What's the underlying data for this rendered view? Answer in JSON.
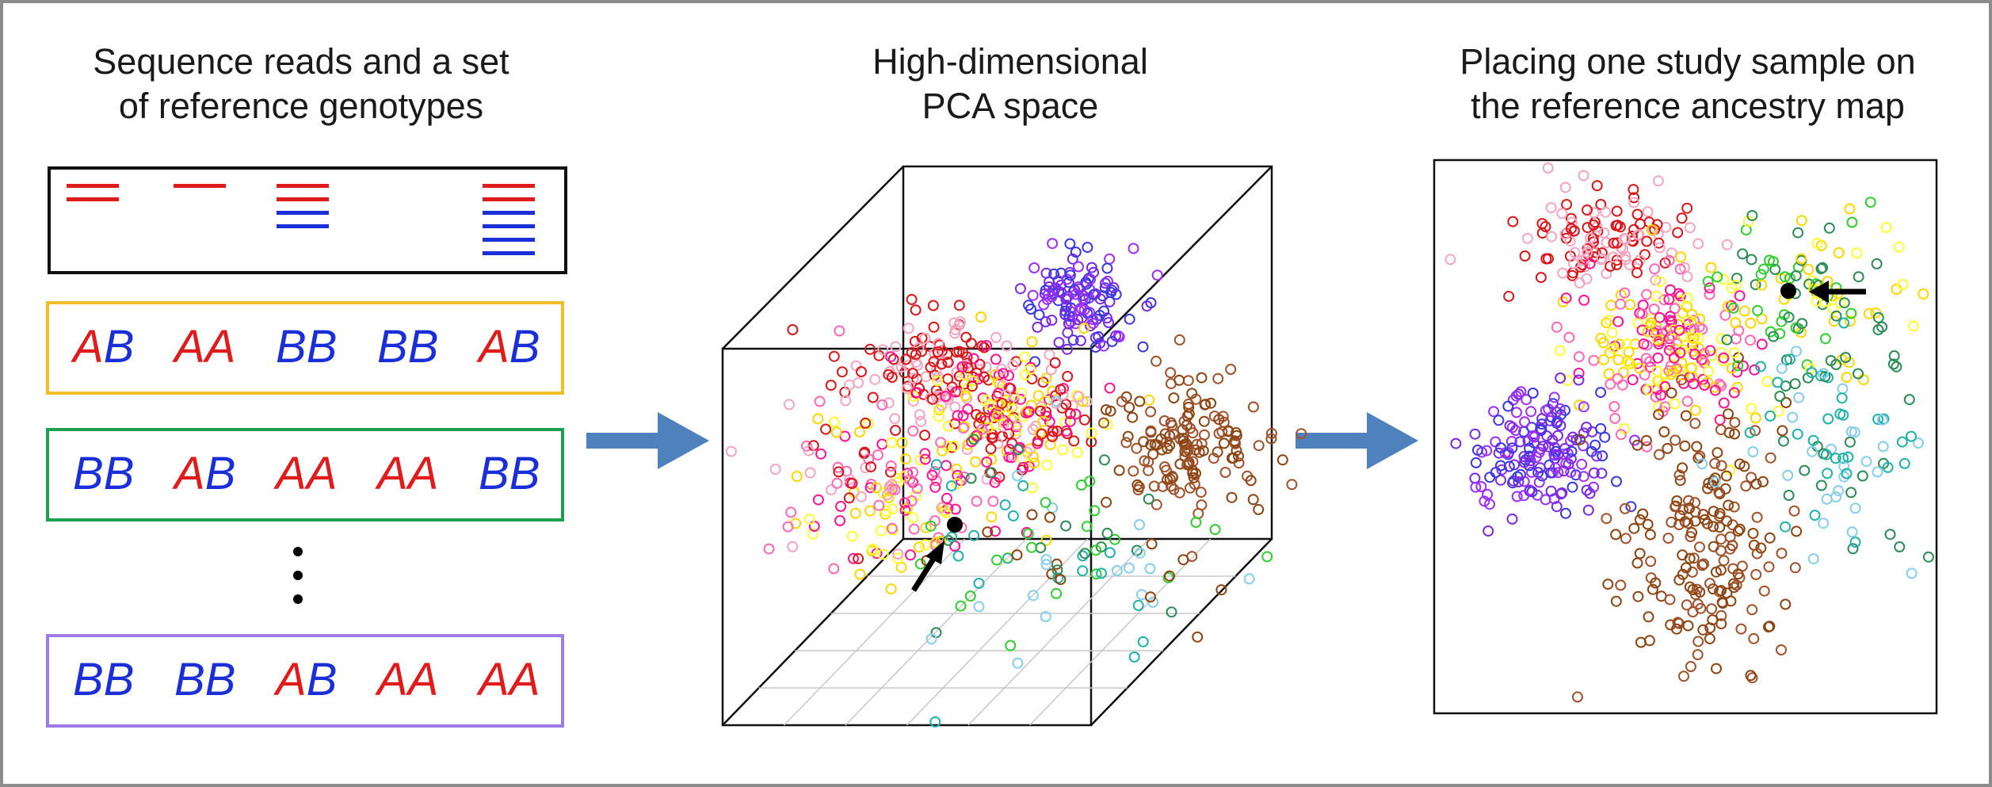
{
  "panels": {
    "left_title": [
      "Sequence reads and a set",
      "of reference genotypes"
    ],
    "middle_title": [
      "High-dimensional",
      "PCA space"
    ],
    "right_title": [
      "Placing one study sample on",
      "the reference ancestry map"
    ]
  },
  "genotype_rows": [
    {
      "box_color": "#f2be28",
      "cells": [
        {
          "a": "A",
          "b": "B",
          "ca": "#e01b1b",
          "cb": "#1a2fd8"
        },
        {
          "a": "A",
          "b": "A",
          "ca": "#e01b1b",
          "cb": "#e01b1b"
        },
        {
          "a": "B",
          "b": "B",
          "ca": "#1a2fd8",
          "cb": "#1a2fd8"
        },
        {
          "a": "B",
          "b": "B",
          "ca": "#1a2fd8",
          "cb": "#1a2fd8"
        },
        {
          "a": "A",
          "b": "B",
          "ca": "#e01b1b",
          "cb": "#1a2fd8"
        }
      ]
    },
    {
      "box_color": "#1fa050",
      "cells": [
        {
          "a": "B",
          "b": "B",
          "ca": "#1a2fd8",
          "cb": "#1a2fd8"
        },
        {
          "a": "A",
          "b": "B",
          "ca": "#e01b1b",
          "cb": "#1a2fd8"
        },
        {
          "a": "A",
          "b": "A",
          "ca": "#e01b1b",
          "cb": "#e01b1b"
        },
        {
          "a": "A",
          "b": "A",
          "ca": "#e01b1b",
          "cb": "#e01b1b"
        },
        {
          "a": "B",
          "b": "B",
          "ca": "#1a2fd8",
          "cb": "#1a2fd8"
        }
      ]
    },
    {
      "box_color": "#a07be6",
      "cells": [
        {
          "a": "B",
          "b": "B",
          "ca": "#1a2fd8",
          "cb": "#1a2fd8"
        },
        {
          "a": "B",
          "b": "B",
          "ca": "#1a2fd8",
          "cb": "#1a2fd8"
        },
        {
          "a": "A",
          "b": "B",
          "ca": "#e01b1b",
          "cb": "#1a2fd8"
        },
        {
          "a": "A",
          "b": "A",
          "ca": "#e01b1b",
          "cb": "#e01b1b"
        },
        {
          "a": "A",
          "b": "A",
          "ca": "#e01b1b",
          "cb": "#e01b1b"
        }
      ]
    }
  ],
  "reads": [
    {
      "stacks": [
        "red",
        "red"
      ]
    },
    {
      "stacks": [
        "red"
      ]
    },
    {
      "stacks": [
        "red",
        "red",
        "blue",
        "blue"
      ]
    },
    {
      "stacks": []
    },
    {
      "stacks": [
        "red",
        "red",
        "blue",
        "blue",
        "blue",
        "blue"
      ]
    }
  ],
  "colors": {
    "read_red": "#e01b1b",
    "read_blue": "#1a2fd8",
    "arrow_blue": "#4f81bd",
    "cluster_palette": [
      "#d7191c",
      "#f4a6c0",
      "#ff1493",
      "#ffd700",
      "#ffff33",
      "#7b2be2",
      "#3a3adf",
      "#9b30ff",
      "#8b4513",
      "#a0522d",
      "#87ceeb",
      "#20b2aa",
      "#2e8b57",
      "#32cd32",
      "#ff69b4"
    ]
  }
}
